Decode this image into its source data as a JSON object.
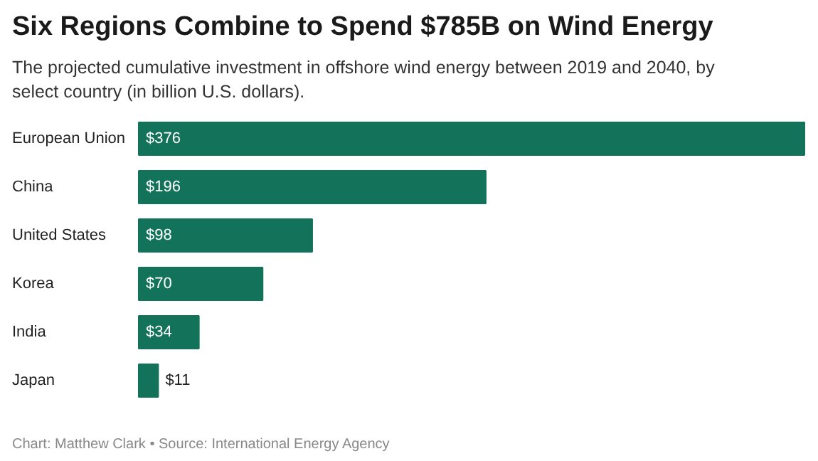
{
  "chart_data": {
    "type": "bar",
    "orientation": "horizontal",
    "title": "Six Regions Combine to Spend $785B on Wind Energy",
    "subtitle": "The projected cumulative investment in offshore wind energy between 2019 and 2040, by select country (in billion U.S. dollars).",
    "categories": [
      "European Union",
      "China",
      "United States",
      "Korea",
      "India",
      "Japan"
    ],
    "values": [
      376,
      196,
      98,
      70,
      34,
      11
    ],
    "value_labels": [
      "$376",
      "$196",
      "$98",
      "$70",
      "$34",
      "$11"
    ],
    "color": "#13735a",
    "annotations": [
      "Chart: Matthew Clark • Source: International Energy Agency"
    ]
  }
}
